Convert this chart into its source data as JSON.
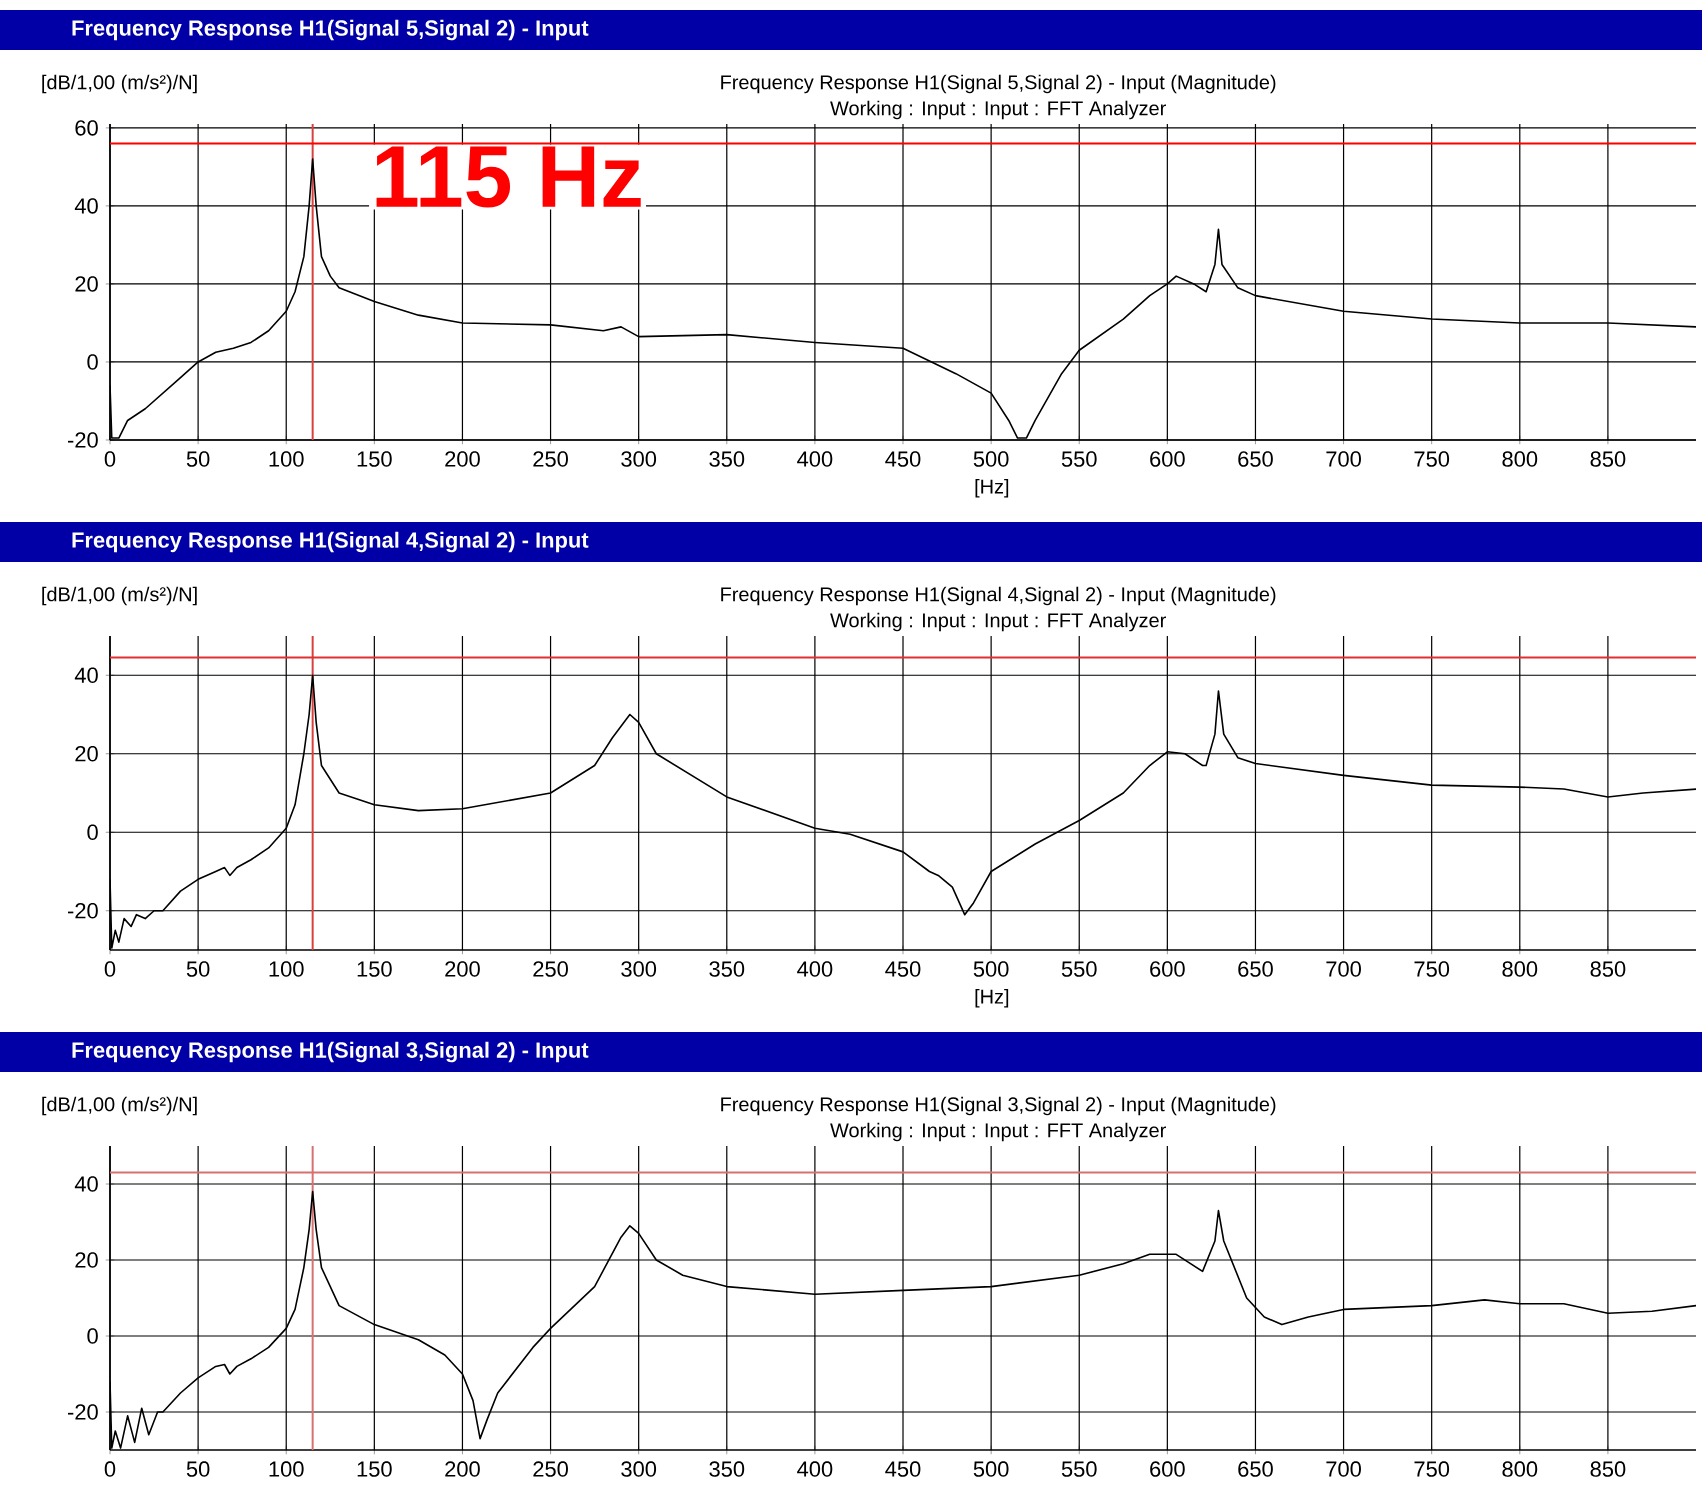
{
  "chart_data": [
    {
      "type": "line",
      "title": "Frequency Response H1(Signal 5,Signal 2) - Input (Magnitude)",
      "subtitle": "Working : Input : Input : FFT Analyzer",
      "ylabel": "[dB/1,00 (m/s²)/N]",
      "xlabel": "[Hz]",
      "annotations": [
        "Frequency Response H1(Signal 5,Signal 2) - Input"
      ],
      "xlim": [
        0,
        900
      ],
      "ylim": [
        -20,
        61
      ],
      "xticks": [
        0,
        50,
        100,
        150,
        200,
        250,
        300,
        350,
        400,
        450,
        500,
        550,
        600,
        650,
        700,
        750,
        800,
        850
      ],
      "yticks": [
        -20,
        0,
        20,
        40,
        60
      ],
      "grid": true,
      "ref_lines": [
        {
          "axis": "x",
          "value": 115,
          "label": "115 Hz",
          "color": "#d84040"
        },
        {
          "axis": "y",
          "value": 56,
          "color": "#ff0000"
        }
      ],
      "series": [
        {
          "color": "#000000",
          "x": [
            0,
            1,
            5,
            10,
            20,
            30,
            40,
            50,
            60,
            70,
            80,
            90,
            100,
            105,
            110,
            113,
            115,
            117,
            120,
            125,
            130,
            150,
            175,
            200,
            250,
            280,
            290,
            300,
            350,
            400,
            450,
            480,
            500,
            510,
            515,
            520,
            525,
            540,
            550,
            575,
            590,
            600,
            605,
            615,
            622,
            627,
            629,
            631,
            640,
            650,
            700,
            750,
            800,
            850,
            900
          ],
          "values": [
            -6,
            -19.5,
            -19.5,
            -15,
            -12,
            -8,
            -4,
            0,
            2.5,
            3.5,
            5,
            8,
            13,
            18,
            27,
            40,
            52,
            40,
            27,
            22,
            19,
            15.5,
            12,
            10,
            9.5,
            8,
            9,
            6.5,
            7,
            5,
            3.5,
            -3,
            -8,
            -15,
            -19.5,
            -19.5,
            -15,
            -3,
            3,
            11,
            17,
            20,
            22,
            20,
            18,
            25,
            34,
            25,
            19,
            17,
            13,
            11,
            10,
            10,
            9
          ]
        }
      ]
    },
    {
      "type": "line",
      "title": "Frequency Response H1(Signal 4,Signal 2) - Input (Magnitude)",
      "subtitle": "Working : Input : Input : FFT Analyzer",
      "ylabel": "[dB/1,00 (m/s²)/N]",
      "xlabel": "[Hz]",
      "annotations": [
        "Frequency Response H1(Signal 4,Signal 2) - Input"
      ],
      "xlim": [
        0,
        900
      ],
      "ylim": [
        -30,
        50
      ],
      "xticks": [
        0,
        50,
        100,
        150,
        200,
        250,
        300,
        350,
        400,
        450,
        500,
        550,
        600,
        650,
        700,
        750,
        800,
        850
      ],
      "yticks": [
        -20,
        0,
        20,
        40
      ],
      "grid": true,
      "ref_lines": [
        {
          "axis": "x",
          "value": 115,
          "color": "#d84040"
        },
        {
          "axis": "y",
          "value": 44.5,
          "color": "#e03030"
        }
      ],
      "series": [
        {
          "color": "#000000",
          "x": [
            0,
            1,
            3,
            5,
            8,
            12,
            15,
            20,
            25,
            30,
            40,
            50,
            60,
            65,
            68,
            72,
            80,
            90,
            100,
            105,
            110,
            113,
            115,
            117,
            120,
            130,
            150,
            175,
            200,
            250,
            275,
            285,
            295,
            300,
            310,
            350,
            400,
            420,
            450,
            465,
            470,
            478,
            485,
            490,
            500,
            525,
            550,
            575,
            590,
            600,
            610,
            620,
            622,
            627,
            629,
            632,
            640,
            650,
            700,
            750,
            800,
            825,
            850,
            870,
            900
          ],
          "values": [
            -12,
            -29.5,
            -25,
            -28,
            -22,
            -24,
            -21,
            -22,
            -20,
            -20,
            -15,
            -12,
            -10,
            -9,
            -11,
            -9,
            -7,
            -4,
            1,
            7,
            20,
            30,
            40,
            28,
            17,
            10,
            7,
            5.5,
            6,
            10,
            17,
            24,
            30,
            28,
            20,
            9,
            1,
            -0.5,
            -5,
            -10,
            -11,
            -14,
            -21,
            -18,
            -10,
            -3,
            3,
            10,
            17,
            20.5,
            20,
            17,
            17,
            25,
            36,
            25,
            19,
            17.5,
            14.5,
            12,
            11.5,
            11,
            9,
            10,
            11
          ]
        }
      ]
    },
    {
      "type": "line",
      "title": "Frequency Response H1(Signal 3,Signal 2) - Input (Magnitude)",
      "subtitle": "Working : Input : Input : FFT Analyzer",
      "ylabel": "[dB/1,00 (m/s²)/N]",
      "annotations": [
        "Frequency Response H1(Signal 3,Signal 2) - Input"
      ],
      "xlim": [
        0,
        900
      ],
      "ylim": [
        -30,
        50
      ],
      "xticks": [
        0,
        50,
        100,
        150,
        200,
        250,
        300,
        350,
        400,
        450,
        500,
        550,
        600,
        650,
        700,
        750,
        800,
        850
      ],
      "yticks": [
        -20,
        0,
        20,
        40
      ],
      "grid": true,
      "ref_lines": [
        {
          "axis": "x",
          "value": 115,
          "color": "#d87070"
        },
        {
          "axis": "y",
          "value": 43,
          "color": "#d87070"
        }
      ],
      "series": [
        {
          "color": "#000000",
          "x": [
            0,
            1,
            3,
            6,
            10,
            14,
            18,
            22,
            27,
            30,
            40,
            50,
            60,
            65,
            68,
            72,
            80,
            90,
            100,
            105,
            110,
            113,
            115,
            117,
            120,
            130,
            150,
            175,
            190,
            200,
            206,
            210,
            214,
            220,
            240,
            250,
            275,
            290,
            295,
            300,
            310,
            325,
            350,
            400,
            450,
            500,
            550,
            575,
            590,
            605,
            620,
            627,
            629,
            632,
            645,
            655,
            665,
            680,
            700,
            750,
            780,
            800,
            825,
            850,
            875,
            900
          ],
          "values": [
            -12,
            -29.5,
            -25,
            -29.5,
            -21,
            -28,
            -19,
            -26,
            -20,
            -20,
            -15,
            -11,
            -8,
            -7.5,
            -10,
            -8,
            -6,
            -3,
            2,
            7,
            18,
            28,
            38,
            28,
            18,
            8,
            3,
            -1,
            -5,
            -10,
            -17,
            -27,
            -22,
            -15,
            -3,
            2,
            13,
            26,
            29,
            27,
            20,
            16,
            13,
            11,
            12,
            13,
            16,
            19,
            21.5,
            21.5,
            17,
            25,
            33,
            25,
            10,
            5,
            3,
            5,
            7,
            8,
            9.5,
            8.5,
            8.5,
            6,
            6.5,
            8
          ]
        }
      ]
    }
  ]
}
